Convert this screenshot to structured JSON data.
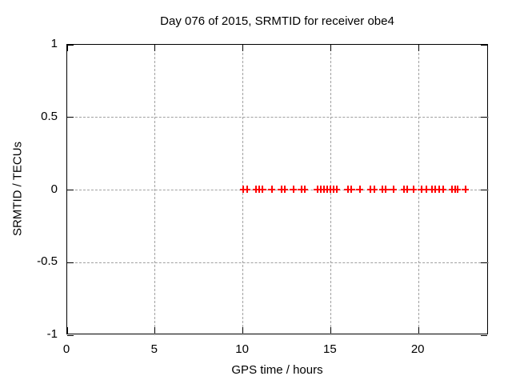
{
  "chart_data": {
    "type": "scatter",
    "title": "Day 076 of 2015, SRMTID for receiver obe4",
    "xlabel": "GPS time / hours",
    "ylabel": "SRMTID / TECUs",
    "xlim": [
      0,
      24
    ],
    "ylim": [
      -1,
      1
    ],
    "x_ticks": [
      {
        "v": 0,
        "label": "0"
      },
      {
        "v": 5,
        "label": "5"
      },
      {
        "v": 10,
        "label": "10"
      },
      {
        "v": 15,
        "label": "15"
      },
      {
        "v": 20,
        "label": "20"
      }
    ],
    "y_ticks": [
      {
        "v": 1,
        "label": "1"
      },
      {
        "v": 0.5,
        "label": "0.5"
      },
      {
        "v": 0,
        "label": "0"
      },
      {
        "v": -0.5,
        "label": "-0.5"
      },
      {
        "v": -1,
        "label": "-1"
      }
    ],
    "grid": "dashed interior gridlines at each tick",
    "legend": "none",
    "marker": "plus",
    "colors": {
      "marker": "#ff0000",
      "grid": "#a0a0a0",
      "frame": "#000000",
      "text": "#000000",
      "background": "#ffffff"
    },
    "series": [
      {
        "name": "SRMTID",
        "x": [
          10.08,
          10.27,
          10.8,
          10.98,
          11.17,
          11.7,
          12.23,
          12.43,
          12.92,
          13.37,
          13.57,
          14.28,
          14.47,
          14.66,
          14.86,
          15.05,
          15.2,
          15.38,
          16.03,
          16.23,
          16.7,
          17.32,
          17.52,
          18.0,
          18.18,
          18.61,
          19.22,
          19.41,
          19.76,
          20.22,
          20.48,
          20.83,
          21.01,
          21.21,
          21.44,
          21.97,
          22.15,
          22.25,
          22.72
        ],
        "y": [
          0,
          0,
          0,
          0,
          0,
          0,
          0,
          0,
          0,
          0,
          0,
          0,
          0,
          0,
          0,
          0,
          0,
          0,
          0,
          0,
          0,
          0,
          0,
          0,
          0,
          0,
          0,
          0,
          0,
          0,
          0,
          0,
          0,
          0,
          0,
          0,
          0,
          0,
          0
        ]
      }
    ]
  }
}
